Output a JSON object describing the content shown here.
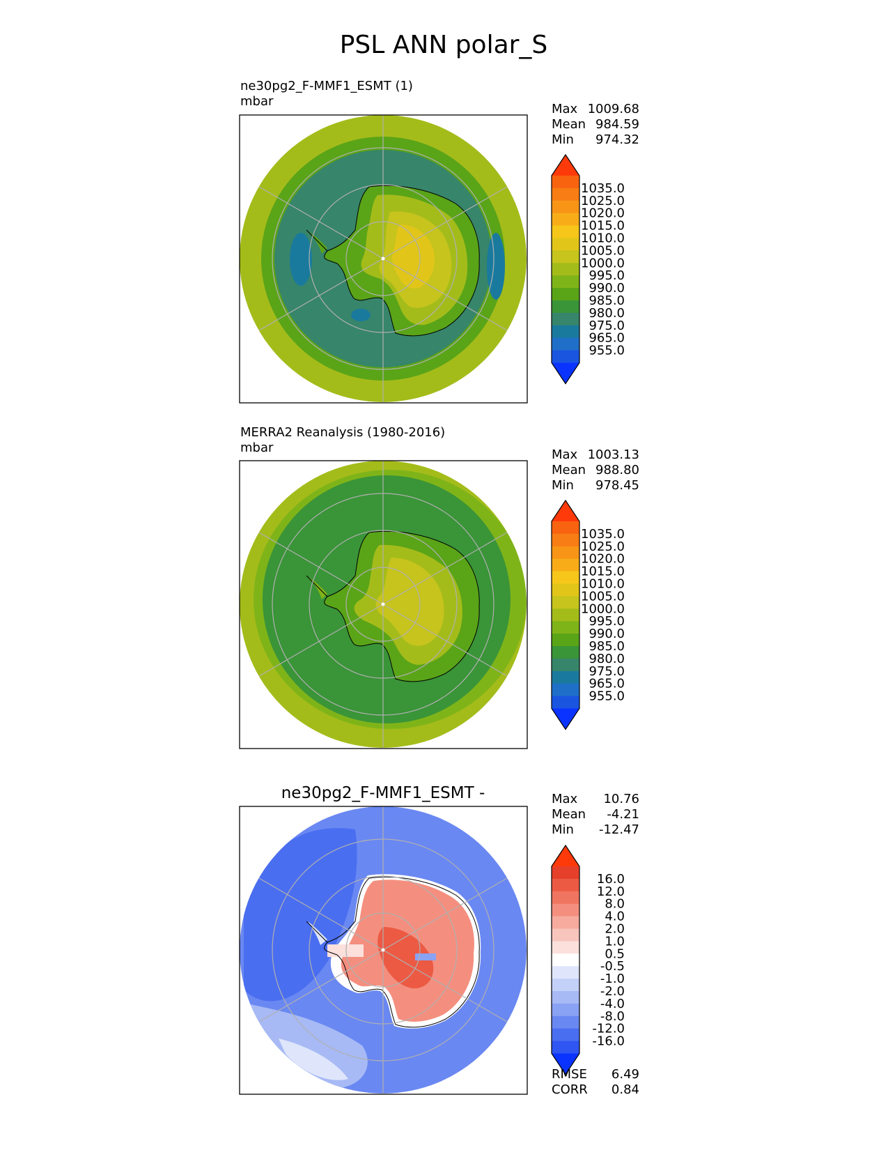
{
  "figure": {
    "title": "PSL ANN polar_S"
  },
  "colors": {
    "abs": [
      "#0a33ff",
      "#1a55e0",
      "#1f6fc8",
      "#1a7a9e",
      "#37856a",
      "#3a9438",
      "#5aa418",
      "#7fb419",
      "#a4bc1a",
      "#c6c41d",
      "#e1c619",
      "#f6c71a",
      "#f8ad18",
      "#f89516",
      "#f87d14",
      "#f86310",
      "#ff3a0a"
    ],
    "diff": [
      "#0a33ff",
      "#2f55f2",
      "#4a6ef0",
      "#6a88f2",
      "#8aa2f4",
      "#a7baf5",
      "#c3d0f8",
      "#dfe6fb",
      "#ffffff",
      "#fbe0dc",
      "#f8c5bd",
      "#f6ab9e",
      "#f48f7f",
      "#f07560",
      "#ec5a44",
      "#e6402a",
      "#ff3a0a"
    ]
  },
  "panels": [
    {
      "name": "test",
      "title_line1": "ne30pg2_F-MMF1_ESMT (1)",
      "title_line2": "mbar",
      "title_center": "",
      "stats": [
        {
          "label": "Max",
          "value": "1009.68"
        },
        {
          "label": "Mean",
          "value": "984.59"
        },
        {
          "label": "Min",
          "value": "974.32"
        }
      ],
      "colorbar": [
        "1035.0",
        "1025.0",
        "1020.0",
        "1015.0",
        "1010.0",
        "1005.0",
        "1000.0",
        "995.0",
        "990.0",
        "985.0",
        "980.0",
        "975.0",
        "965.0",
        "955.0"
      ]
    },
    {
      "name": "reference",
      "title_line1": "MERRA2 Reanalysis (1980-2016)",
      "title_line2": "mbar",
      "title_center": "",
      "stats": [
        {
          "label": "Max",
          "value": "1003.13"
        },
        {
          "label": "Mean",
          "value": "988.80"
        },
        {
          "label": "Min",
          "value": "978.45"
        }
      ],
      "colorbar": [
        "1035.0",
        "1025.0",
        "1020.0",
        "1015.0",
        "1010.0",
        "1005.0",
        "1000.0",
        "995.0",
        "990.0",
        "985.0",
        "980.0",
        "975.0",
        "965.0",
        "955.0"
      ]
    },
    {
      "name": "difference",
      "title_line1": "",
      "title_line2": "",
      "title_center": "ne30pg2_F-MMF1_ESMT -",
      "stats": [
        {
          "label": "Max",
          "value": "10.76"
        },
        {
          "label": "Mean",
          "value": "-4.21"
        },
        {
          "label": "Min",
          "value": "-12.47"
        }
      ],
      "colorbar": [
        "16.0",
        "12.0",
        "8.0",
        "4.0",
        "2.0",
        "1.0",
        "0.5",
        "-0.5",
        "-1.0",
        "-2.0",
        "-4.0",
        "-8.0",
        "-12.0",
        "-16.0"
      ],
      "metrics": [
        {
          "label": "RMSE",
          "value": "6.49"
        },
        {
          "label": "CORR",
          "value": "0.84"
        }
      ]
    }
  ],
  "chart_data": [
    {
      "type": "heatmap",
      "projection": "polar stereographic (south)",
      "title": "ne30pg2_F-MMF1_ESMT (1)",
      "units": "mbar",
      "max": 1009.68,
      "mean": 984.59,
      "min": 974.32,
      "levels": [
        955,
        965,
        975,
        980,
        985,
        990,
        995,
        1000,
        1005,
        1010,
        1015,
        1020,
        1025,
        1035
      ]
    },
    {
      "type": "heatmap",
      "projection": "polar stereographic (south)",
      "title": "MERRA2 Reanalysis (1980-2016)",
      "units": "mbar",
      "max": 1003.13,
      "mean": 988.8,
      "min": 978.45,
      "levels": [
        955,
        965,
        975,
        980,
        985,
        990,
        995,
        1000,
        1005,
        1010,
        1015,
        1020,
        1025,
        1035
      ]
    },
    {
      "type": "heatmap",
      "projection": "polar stereographic (south)",
      "title": "ne30pg2_F-MMF1_ESMT -",
      "max": 10.76,
      "mean": -4.21,
      "min": -12.47,
      "rmse": 6.49,
      "corr": 0.84,
      "levels": [
        -16,
        -12,
        -8,
        -4,
        -2,
        -1,
        -0.5,
        0.5,
        1,
        2,
        4,
        8,
        12,
        16
      ]
    }
  ]
}
